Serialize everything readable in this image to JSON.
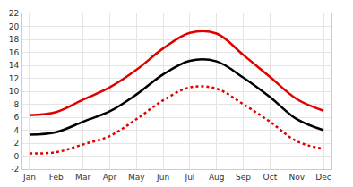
{
  "chart_data": {
    "type": "line",
    "categories": [
      "Jan",
      "Feb",
      "Mar",
      "Apr",
      "May",
      "Jun",
      "Jul",
      "Aug",
      "Sep",
      "Oct",
      "Nov",
      "Dec"
    ],
    "series": [
      {
        "color": "#e00000",
        "line_style": "solid",
        "values": [
          6.3,
          6.8,
          8.7,
          10.6,
          13.3,
          16.6,
          19.0,
          18.9,
          15.6,
          12.2,
          8.8,
          7.0
        ]
      },
      {
        "color": "#000000",
        "line_style": "solid",
        "values": [
          3.3,
          3.7,
          5.3,
          6.9,
          9.5,
          12.6,
          14.7,
          14.6,
          12.1,
          9.1,
          5.7,
          4.0
        ]
      },
      {
        "color": "#e00000",
        "line_style": "dotted",
        "values": [
          0.4,
          0.6,
          1.8,
          3.1,
          5.7,
          8.6,
          10.6,
          10.4,
          8.0,
          5.3,
          2.3,
          1.1
        ]
      }
    ],
    "ylim": [
      -2,
      22
    ],
    "yticks": [
      -2,
      0,
      2,
      4,
      6,
      8,
      10,
      12,
      14,
      16,
      18,
      20,
      22
    ],
    "y2lim": [
      -2,
      22
    ],
    "y2ticks": [
      -2,
      0,
      2,
      4,
      6,
      8,
      10,
      12,
      14,
      16,
      18,
      20,
      22
    ],
    "grid": true
  }
}
